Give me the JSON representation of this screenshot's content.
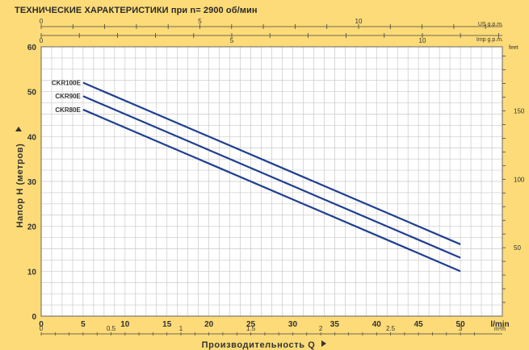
{
  "chart_data": {
    "type": "line",
    "title": "ТЕХНИЧЕСКИЕ ХАРАКТЕРИСТИКИ при n= 2900 об/мин",
    "xlabel": "Производительность Q",
    "ylabel": "Напор H (метров)",
    "x_unit": "l/min",
    "x2_unit": "m³/h",
    "top_axis_us_label": "US g.p.m.",
    "top_axis_imp_label": "Imp g.p.m.",
    "right_axis_label": "feet",
    "xlim": [
      0,
      55
    ],
    "ylim": [
      0,
      60
    ],
    "x_ticks": [
      0,
      5,
      10,
      15,
      20,
      25,
      30,
      35,
      40,
      45,
      50
    ],
    "y_ticks": [
      0,
      10,
      20,
      30,
      40,
      50,
      60
    ],
    "m3h_ticks": [
      "0",
      "0.5",
      "1",
      "1.5",
      "2",
      "2.5",
      "3"
    ],
    "us_gpm_ticks": [
      "0",
      "5",
      "10"
    ],
    "imp_gpm_ticks": [
      "0",
      "5",
      "10"
    ],
    "feet_ticks": [
      "50",
      "100",
      "150"
    ],
    "grid": true,
    "series": [
      {
        "name": "CKR100E",
        "x": [
          5,
          50
        ],
        "y": [
          52,
          16
        ],
        "color": "#1F3F8F"
      },
      {
        "name": "CKR90E",
        "x": [
          5,
          50
        ],
        "y": [
          49,
          13
        ],
        "color": "#1F3F8F"
      },
      {
        "name": "CKR80E",
        "x": [
          5,
          50
        ],
        "y": [
          46,
          10
        ],
        "color": "#1F3F8F"
      }
    ]
  }
}
